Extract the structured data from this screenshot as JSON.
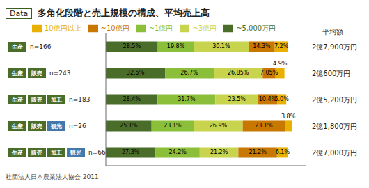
{
  "chart_data": {
    "type": "bar",
    "orientation": "horizontal",
    "stacked": true,
    "title": "多角化段階と売上規模の構成、平均売上高",
    "badge": "Data",
    "categories": [
      "n=166",
      "n=243",
      "n=183",
      "n=26",
      "n=66"
    ],
    "tags": [
      [
        "生産"
      ],
      [
        "生産",
        "販売"
      ],
      [
        "生産",
        "販売",
        "加工"
      ],
      [
        "生産",
        "販売",
        "観光"
      ],
      [
        "生産",
        "販売",
        "加工",
        "観光"
      ]
    ],
    "tag_colors": [
      [
        "#4a6e2a"
      ],
      [
        "#4a6e2a",
        "#4a6e2a"
      ],
      [
        "#4a6e2a",
        "#4a6e2a",
        "#4a6e2a"
      ],
      [
        "#4a6e2a",
        "#4a6e2a",
        "#4477aa"
      ],
      [
        "#4a6e2a",
        "#4a6e2a",
        "#4a6e2a",
        "#4477aa"
      ]
    ],
    "series": [
      {
        "name": "~5,000万円",
        "color": "#4a6e2a",
        "values": [
          28.5,
          32.5,
          28.4,
          25.1,
          27.3
        ],
        "value_labels": [
          "28.5%",
          "32.5%",
          "28.4%",
          "25.1%",
          "27.3%"
        ]
      },
      {
        "name": "~1億円",
        "color": "#8bbf3a",
        "values": [
          19.8,
          26.7,
          31.7,
          23.1,
          24.2
        ],
        "value_labels": [
          "19.8%",
          "26.7%",
          "31.7%",
          "23.1%",
          "24.2%"
        ]
      },
      {
        "name": "~3億円",
        "color": "#c8d44e",
        "values": [
          30.1,
          26.85,
          23.5,
          26.9,
          21.2
        ],
        "value_labels": [
          "30.1%",
          "26.85%",
          "23.5%",
          "26.9%",
          "21.2%"
        ]
      },
      {
        "name": "~10億円",
        "color": "#c87800",
        "values": [
          14.3,
          7.05,
          10.4,
          23.1,
          21.2
        ],
        "value_labels": [
          "14.3%",
          "7.05%",
          "10.4%",
          "23.1%",
          "21.2%"
        ]
      },
      {
        "name": "10億円以上",
        "color": "#e8b000",
        "values": [
          7.2,
          4.9,
          5.0,
          3.8,
          6.1
        ],
        "value_labels": [
          "7.2%",
          null,
          "5.0%",
          null,
          "6.1%"
        ]
      }
    ],
    "data_labels": true,
    "annotations": [
      {
        "text": "4.9%",
        "category": "n=243",
        "series": "10億円以上"
      },
      {
        "text": "3.8%",
        "category": "n=26",
        "series": "10億円以上"
      }
    ],
    "xlim": [
      0,
      110
    ],
    "xticks": [],
    "tick_labels": "y",
    "grid": false,
    "legend": "top",
    "averages": {
      "title": "平均額",
      "labels": [
        "2億7,900万円",
        "2億600万円",
        "2億5,200万円",
        "2億1,800万円",
        "2億7,000万円"
      ]
    },
    "footer": "社団法人日本農業法人協会 2011"
  }
}
